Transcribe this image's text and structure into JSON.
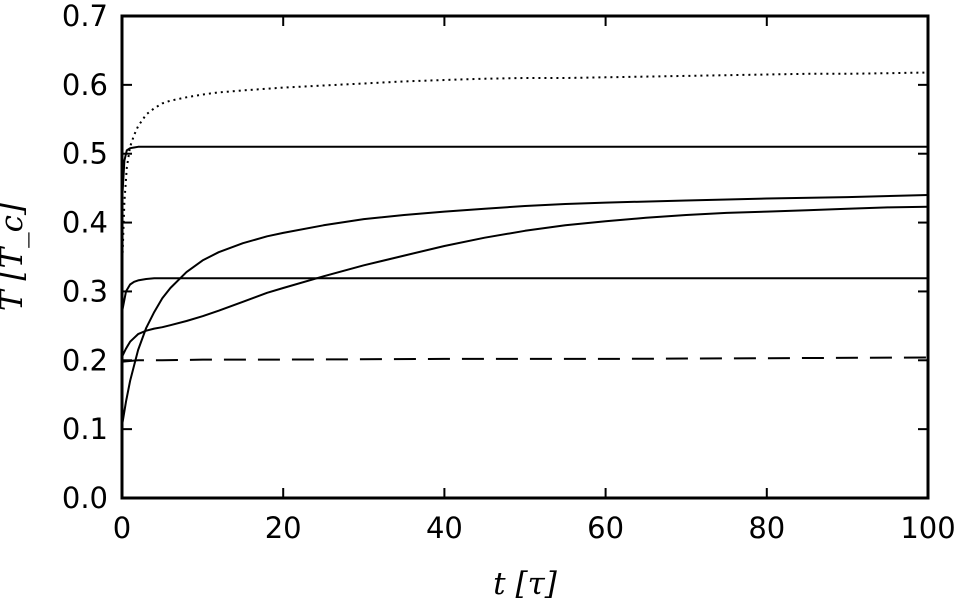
{
  "chart_data": {
    "type": "line",
    "title": "",
    "xlabel": "t [τ]",
    "ylabel": "T [T_c]",
    "xlim": [
      0,
      100
    ],
    "ylim": [
      0.0,
      0.7
    ],
    "xticks": [
      0,
      20,
      40,
      60,
      80,
      100
    ],
    "xtick_labels": [
      "0",
      "20",
      "40",
      "60",
      "80",
      "100"
    ],
    "yticks": [
      0.0,
      0.1,
      0.2,
      0.3,
      0.4,
      0.5,
      0.6,
      0.7
    ],
    "ytick_labels": [
      "0.0",
      "0.1",
      "0.2",
      "0.3",
      "0.4",
      "0.5",
      "0.6",
      "0.7"
    ],
    "grid": false,
    "series": [
      {
        "style": "dotted",
        "x": [
          0,
          0.3,
          0.6,
          1,
          1.5,
          2,
          3,
          4,
          5,
          6,
          8,
          10,
          12,
          15,
          20,
          25,
          30,
          35,
          40,
          45,
          50,
          55,
          60,
          65,
          70,
          75,
          80,
          85,
          90,
          95,
          100
        ],
        "y": [
          0.33,
          0.43,
          0.48,
          0.51,
          0.527,
          0.54,
          0.557,
          0.566,
          0.573,
          0.577,
          0.582,
          0.586,
          0.589,
          0.592,
          0.596,
          0.599,
          0.602,
          0.605,
          0.607,
          0.609,
          0.61,
          0.61,
          0.611,
          0.612,
          0.613,
          0.614,
          0.615,
          0.616,
          0.616,
          0.617,
          0.618
        ]
      },
      {
        "style": "solid",
        "x": [
          0,
          0.3,
          0.6,
          1,
          1.5,
          2,
          3,
          5,
          10,
          20,
          40,
          60,
          80,
          100
        ],
        "y": [
          0.43,
          0.49,
          0.505,
          0.508,
          0.509,
          0.51,
          0.51,
          0.51,
          0.51,
          0.51,
          0.51,
          0.51,
          0.51,
          0.51
        ]
      },
      {
        "style": "solid",
        "x": [
          0,
          0.5,
          1,
          2,
          3,
          4,
          5,
          6,
          8,
          10,
          12,
          15,
          18,
          20,
          25,
          30,
          35,
          40,
          45,
          50,
          55,
          60,
          70,
          80,
          90,
          100
        ],
        "y": [
          0.105,
          0.14,
          0.17,
          0.215,
          0.247,
          0.27,
          0.29,
          0.305,
          0.328,
          0.345,
          0.357,
          0.37,
          0.38,
          0.385,
          0.396,
          0.405,
          0.411,
          0.416,
          0.42,
          0.424,
          0.427,
          0.429,
          0.432,
          0.435,
          0.437,
          0.44
        ]
      },
      {
        "style": "solid",
        "x": [
          0,
          0.5,
          1,
          2,
          3,
          4,
          5,
          6,
          8,
          10,
          12,
          15,
          18,
          20,
          25,
          30,
          35,
          40,
          45,
          50,
          55,
          60,
          65,
          70,
          75,
          80,
          85,
          90,
          95,
          100
        ],
        "y": [
          0.205,
          0.217,
          0.227,
          0.238,
          0.243,
          0.246,
          0.248,
          0.251,
          0.257,
          0.264,
          0.272,
          0.285,
          0.298,
          0.305,
          0.322,
          0.338,
          0.352,
          0.366,
          0.378,
          0.388,
          0.396,
          0.402,
          0.407,
          0.411,
          0.414,
          0.416,
          0.418,
          0.42,
          0.422,
          0.423
        ]
      },
      {
        "style": "solid",
        "x": [
          0,
          0.5,
          1,
          1.5,
          2,
          3,
          4,
          5,
          10,
          20,
          40,
          60,
          80,
          100
        ],
        "y": [
          0.27,
          0.3,
          0.31,
          0.314,
          0.316,
          0.318,
          0.319,
          0.319,
          0.319,
          0.319,
          0.319,
          0.319,
          0.319,
          0.319
        ]
      },
      {
        "style": "dashed",
        "x": [
          0,
          2,
          5,
          10,
          20,
          40,
          60,
          80,
          100
        ],
        "y": [
          0.198,
          0.2,
          0.2,
          0.201,
          0.201,
          0.202,
          0.202,
          0.203,
          0.204
        ]
      }
    ]
  }
}
